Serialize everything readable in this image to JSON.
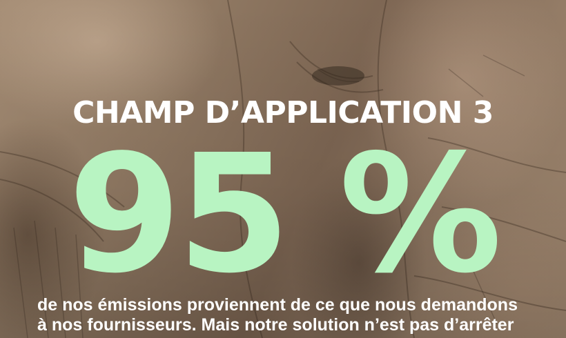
{
  "heading": "CHAMP D’APPLICATION 3",
  "stat": "95 %",
  "body_lines": [
    "de nos émissions proviennent de ce que nous demandons",
    "à nos fournisseurs. Mais notre solution n’est pas d’arrêter"
  ],
  "colors": {
    "heading": "#ffffff",
    "stat": "#b8f4c2",
    "body": "#ffffff"
  },
  "background": "elephant-skin-photo"
}
